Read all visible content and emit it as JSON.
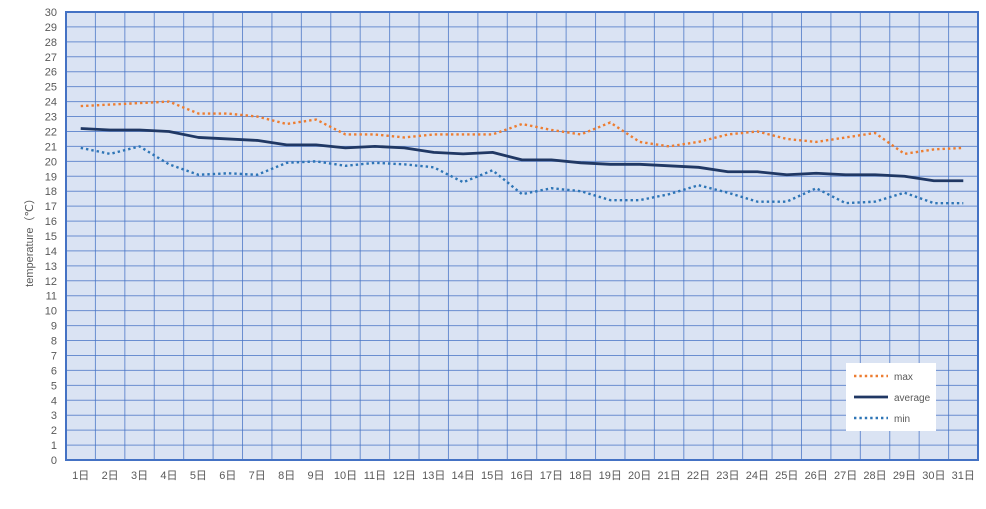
{
  "chart_data": {
    "type": "line",
    "title": "",
    "xlabel": "",
    "ylabel": "temperature（℃）",
    "ylim": [
      0,
      30
    ],
    "ytick_step": 1,
    "grid": true,
    "legend_position": "bottom-right",
    "colors": {
      "plot_background": "#dae3f3",
      "grid": "#4472c4",
      "axis_text": "#595959"
    },
    "categories": [
      "1日",
      "2日",
      "3日",
      "4日",
      "5日",
      "6日",
      "7日",
      "8日",
      "9日",
      "10日",
      "11日",
      "12日",
      "13日",
      "14日",
      "15日",
      "16日",
      "17日",
      "18日",
      "19日",
      "20日",
      "21日",
      "22日",
      "23日",
      "24日",
      "25日",
      "26日",
      "27日",
      "28日",
      "29日",
      "30日",
      "31日"
    ],
    "series": [
      {
        "name": "max",
        "color": "#ed7d31",
        "style": "dotted",
        "values": [
          23.7,
          23.8,
          23.9,
          24.0,
          23.2,
          23.2,
          23.0,
          22.5,
          22.8,
          21.8,
          21.8,
          21.6,
          21.8,
          21.8,
          21.8,
          22.5,
          22.1,
          21.8,
          22.6,
          21.3,
          21.0,
          21.3,
          21.8,
          22.0,
          21.5,
          21.3,
          21.6,
          21.9,
          20.5,
          20.8,
          20.9
        ]
      },
      {
        "name": "average",
        "color": "#203864",
        "style": "solid",
        "values": [
          22.2,
          22.1,
          22.1,
          22.0,
          21.6,
          21.5,
          21.4,
          21.1,
          21.1,
          20.9,
          21.0,
          20.9,
          20.6,
          20.5,
          20.6,
          20.1,
          20.1,
          19.9,
          19.8,
          19.8,
          19.7,
          19.6,
          19.3,
          19.3,
          19.1,
          19.2,
          19.1,
          19.1,
          19.0,
          18.7,
          18.7
        ]
      },
      {
        "name": "min",
        "color": "#2e75b6",
        "style": "dotted",
        "values": [
          20.9,
          20.5,
          21.0,
          19.8,
          19.1,
          19.2,
          19.1,
          19.9,
          20.0,
          19.7,
          19.9,
          19.8,
          19.6,
          18.6,
          19.4,
          17.8,
          18.2,
          18.0,
          17.4,
          17.4,
          17.8,
          18.4,
          17.9,
          17.3,
          17.3,
          18.2,
          17.2,
          17.3,
          17.9,
          17.2,
          17.2
        ]
      }
    ]
  }
}
